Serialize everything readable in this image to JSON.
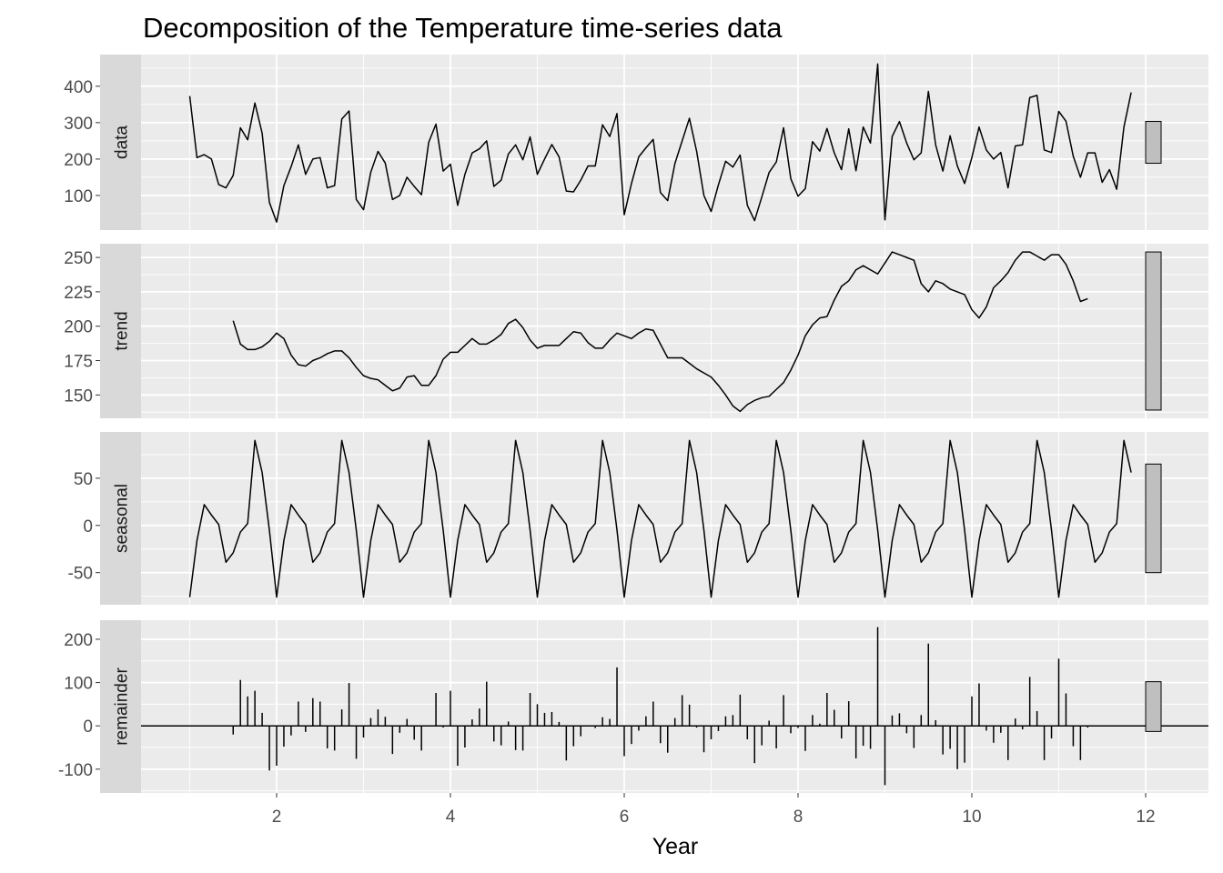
{
  "chart_data": {
    "type": "line",
    "title": "Decomposition of the Temperature time-series data",
    "xlabel": "Year",
    "ylabel": "",
    "x_start": 1,
    "frequency": 12,
    "xlim": [
      0.45,
      12.72
    ],
    "x_ticks": [
      2,
      4,
      6,
      8,
      10,
      12
    ],
    "x_tick_labels": [
      "2",
      "4",
      "6",
      "8",
      "10",
      "12"
    ],
    "grid": true,
    "scale_bar_range": 115,
    "panels": [
      {
        "name": "data",
        "label": "data",
        "kind": "line",
        "ylim": [
          5,
          487
        ],
        "y_ticks": [
          100,
          200,
          300,
          400
        ],
        "y_tick_labels": [
          "100",
          "200",
          "300",
          "400"
        ],
        "start_index": 1,
        "values": [
          373,
          204,
          212,
          200,
          130,
          121,
          155,
          286,
          253,
          354,
          271,
          81,
          27,
          127,
          179,
          239,
          158,
          200,
          204,
          121,
          127,
          310,
          332,
          89,
          61,
          164,
          221,
          189,
          89,
          100,
          150,
          125,
          102,
          246,
          296,
          167,
          186,
          73,
          158,
          217,
          228,
          250,
          125,
          142,
          214,
          239,
          198,
          261,
          158,
          200,
          240,
          206,
          112,
          110,
          142,
          181,
          181,
          294,
          262,
          325,
          47,
          133,
          206,
          231,
          254,
          108,
          86,
          188,
          250,
          312,
          221,
          100,
          56,
          129,
          194,
          178,
          211,
          73,
          31,
          96,
          163,
          192,
          286,
          146,
          98,
          119,
          248,
          222,
          284,
          217,
          171,
          283,
          168,
          288,
          244,
          461,
          33,
          262,
          303,
          244,
          198,
          217,
          386,
          239,
          167,
          264,
          181,
          133,
          204,
          288,
          225,
          200,
          218,
          121,
          236,
          239,
          369,
          375,
          225,
          218,
          331,
          304,
          208,
          150,
          217,
          217,
          136,
          171,
          117,
          288,
          383
        ]
      },
      {
        "name": "trend",
        "label": "trend",
        "kind": "line",
        "ylim": [
          133,
          260
        ],
        "y_ticks": [
          150,
          175,
          200,
          225,
          250
        ],
        "y_tick_labels": [
          "150",
          "175",
          "200",
          "225",
          "250"
        ],
        "start_index": 7,
        "values": [
          204,
          187,
          183,
          183,
          185,
          189,
          195,
          191,
          179,
          172,
          171,
          175,
          177,
          180,
          182,
          182,
          177,
          170,
          164,
          162,
          161,
          157,
          153,
          155,
          163,
          164,
          157,
          157,
          164,
          176,
          181,
          181,
          186,
          191,
          187,
          187,
          190,
          194,
          202,
          205,
          199,
          190,
          184,
          186,
          186,
          186,
          191,
          196,
          195,
          188,
          184,
          184,
          190,
          195,
          193,
          191,
          195,
          198,
          197,
          187,
          177,
          177,
          177,
          173,
          169,
          166,
          163,
          157,
          150,
          142,
          138,
          143,
          146,
          148,
          149,
          154,
          159,
          168,
          179,
          193,
          201,
          206,
          207,
          219,
          229,
          233,
          241,
          244,
          241,
          238,
          246,
          254,
          252,
          250,
          248,
          231,
          225,
          233,
          231,
          227,
          225,
          223,
          212,
          206,
          214,
          228,
          233,
          239,
          248,
          254,
          254,
          251,
          248,
          252,
          252,
          245,
          233,
          218,
          220
        ]
      },
      {
        "name": "seasonal",
        "label": "seasonal",
        "kind": "line",
        "ylim": [
          -84,
          99
        ],
        "y_ticks": [
          -50,
          0,
          50
        ],
        "y_tick_labels": [
          "-50",
          "0",
          "50"
        ],
        "pattern": [
          -76,
          -16,
          22,
          11,
          1,
          -39,
          -29,
          -7,
          2,
          90,
          56,
          -5
        ]
      },
      {
        "name": "remainder",
        "label": "remainder",
        "kind": "bar",
        "ylim": [
          -155,
          244
        ],
        "y_ticks": [
          -100,
          0,
          100,
          200
        ],
        "y_tick_labels": [
          "-100",
          "0",
          "100",
          "200"
        ],
        "derived": "data - trend - seasonal"
      }
    ]
  },
  "colors": {
    "panel_bg": "#ebebeb",
    "strip_bg": "#d9d9d9",
    "grid": "#ffffff",
    "line": "#000000",
    "scale_bar": "#bfbfbf"
  }
}
